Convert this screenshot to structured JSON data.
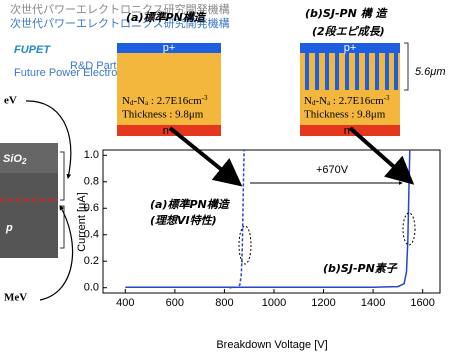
{
  "logo": {
    "small_text": "次世代パワーエレクトロニクス研究開発機構",
    "name": "FUPET",
    "line1": "R&D Partnership for",
    "line2": "Future Power Electronics Technology"
  },
  "left_panel": {
    "top_label": "eV",
    "oxide": [
      "SiO",
      "2"
    ],
    "region": "p",
    "bottom_label": "MeV"
  },
  "structures": [
    {
      "title": "(a)標準PN構造",
      "top_layer": "p+",
      "doping": [
        "N",
        "d",
        "-N",
        "a",
        " : 2.7E16cm",
        "-3"
      ],
      "thickness": "Thickness : 9.8μm",
      "bottom_layer": "n+"
    },
    {
      "title": "(b)SJ-PN 構 造",
      "subtitle": "(2段エピ成長)",
      "top_layer": "p+",
      "doping": [
        "N",
        "d",
        "-N",
        "a",
        " : 2.7E16cm",
        "-3"
      ],
      "thickness": "Thickness : 9.8μm",
      "bottom_layer": "n+",
      "pillar_depth": "5.6μm"
    }
  ],
  "chart_data": {
    "type": "line",
    "x_label": "Breakdown Voltage [V]",
    "y_label": "Current [μA]",
    "xlim": [
      310,
      1670
    ],
    "ylim": [
      -0.04,
      1.04
    ],
    "xticks": [
      400,
      600,
      800,
      1000,
      1200,
      1400,
      1600
    ],
    "yticks": [
      {
        "value": 0,
        "label": "0.0"
      },
      0.2,
      0.4,
      0.6,
      0.8,
      {
        "value": 1,
        "label": "1.0"
      }
    ],
    "series": [
      {
        "color": "#2a44c8",
        "dashed": true,
        "x": [
          820,
          850,
          862,
          868,
          872,
          875,
          878,
          880
        ],
        "values": [
          0,
          0.003,
          0.02,
          0.1,
          0.3,
          0.6,
          0.9,
          1.04
        ]
      },
      {
        "color": "#2a44c8",
        "dashed": false,
        "x": [
          400,
          1400,
          1500,
          1525,
          1535,
          1540,
          1544,
          1548
        ],
        "values": [
          0.003,
          0.004,
          0.008,
          0.03,
          0.12,
          0.35,
          0.7,
          1.04
        ]
      }
    ],
    "annotations": {
      "diff": "+670V",
      "a_line1": "(a)標準PN構造",
      "a_line2": "(理想VI特性)",
      "b_label": "(b)SJ-PN素子"
    }
  }
}
